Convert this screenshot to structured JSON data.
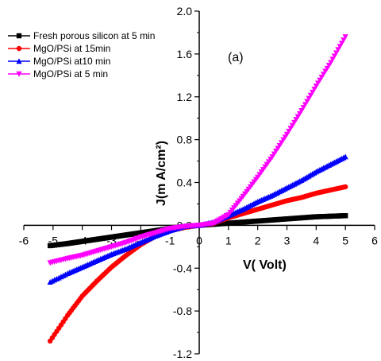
{
  "chart_data": {
    "type": "line",
    "panel_label": "(a)",
    "xlabel": "V(  Volt)",
    "ylabel": "J(m A/cm²)",
    "xlim": [
      -6,
      6
    ],
    "ylim": [
      -1.2,
      2.0
    ],
    "x_ticks": [
      -6,
      -5,
      -4,
      -3,
      -2,
      -1,
      0,
      1,
      2,
      3,
      4,
      5,
      6
    ],
    "y_ticks": [
      -1.2,
      -0.8,
      -0.4,
      0.0,
      0.4,
      0.8,
      1.2,
      1.6,
      2.0
    ],
    "x_tick_labels": [
      "-6",
      "-5",
      "-4",
      "-3",
      "-2",
      "-1",
      "0",
      "1",
      "2",
      "3",
      "4",
      "5",
      "6"
    ],
    "y_tick_labels": [
      "-1.2",
      "-0.8",
      "-0.4",
      "0.0",
      "0.4",
      "0.8",
      "1.2",
      "1.6",
      "2.0"
    ],
    "legend_position": "top-left",
    "grid": false,
    "series": [
      {
        "name": "Fresh porous silicon at 5 min",
        "color": "#000000",
        "marker": "square",
        "x": [
          -5.1,
          -4.5,
          -4.0,
          -3.5,
          -3.0,
          -2.5,
          -2.0,
          -1.5,
          -1.0,
          -0.5,
          0.0,
          0.5,
          1.0,
          1.5,
          2.0,
          2.5,
          3.0,
          3.5,
          4.0,
          4.5,
          5.0
        ],
        "y": [
          -0.19,
          -0.17,
          -0.15,
          -0.13,
          -0.11,
          -0.09,
          -0.07,
          -0.05,
          -0.03,
          -0.01,
          0.0,
          0.01,
          0.02,
          0.03,
          0.04,
          0.05,
          0.06,
          0.07,
          0.08,
          0.085,
          0.09
        ]
      },
      {
        "name": "MgO/PSi at 15min",
        "color": "#ff0000",
        "marker": "circle",
        "x": [
          -5.1,
          -4.5,
          -4.0,
          -3.5,
          -3.0,
          -2.5,
          -2.0,
          -1.5,
          -1.0,
          -0.5,
          0.0,
          0.5,
          1.0,
          1.5,
          2.0,
          2.5,
          3.0,
          3.5,
          4.0,
          4.5,
          5.0
        ],
        "y": [
          -1.08,
          -0.84,
          -0.66,
          -0.52,
          -0.39,
          -0.28,
          -0.18,
          -0.1,
          -0.05,
          -0.02,
          0.0,
          0.02,
          0.07,
          0.11,
          0.15,
          0.19,
          0.23,
          0.26,
          0.3,
          0.33,
          0.36
        ]
      },
      {
        "name": "MgO/PSi at10 min",
        "color": "#0000ff",
        "marker": "triangle-up",
        "x": [
          -5.1,
          -4.5,
          -4.0,
          -3.5,
          -3.0,
          -2.5,
          -2.0,
          -1.5,
          -1.0,
          -0.5,
          0.0,
          0.5,
          1.0,
          1.5,
          2.0,
          2.5,
          3.0,
          3.5,
          4.0,
          4.5,
          5.0
        ],
        "y": [
          -0.53,
          -0.45,
          -0.39,
          -0.33,
          -0.27,
          -0.22,
          -0.16,
          -0.1,
          -0.05,
          -0.01,
          0.0,
          0.03,
          0.09,
          0.15,
          0.22,
          0.28,
          0.35,
          0.42,
          0.5,
          0.57,
          0.64
        ]
      },
      {
        "name": "MgO/PSi at 5 min",
        "color": "#ff00ff",
        "marker": "triangle-down",
        "x": [
          -5.1,
          -4.5,
          -4.0,
          -3.5,
          -3.0,
          -2.5,
          -2.0,
          -1.5,
          -1.0,
          -0.5,
          0.0,
          0.5,
          1.0,
          1.5,
          2.0,
          2.5,
          3.0,
          3.5,
          4.0,
          4.5,
          5.0
        ],
        "y": [
          -0.35,
          -0.31,
          -0.28,
          -0.24,
          -0.2,
          -0.16,
          -0.11,
          -0.07,
          -0.03,
          -0.01,
          0.0,
          0.02,
          0.1,
          0.27,
          0.45,
          0.64,
          0.85,
          1.07,
          1.3,
          1.52,
          1.76
        ]
      }
    ]
  }
}
